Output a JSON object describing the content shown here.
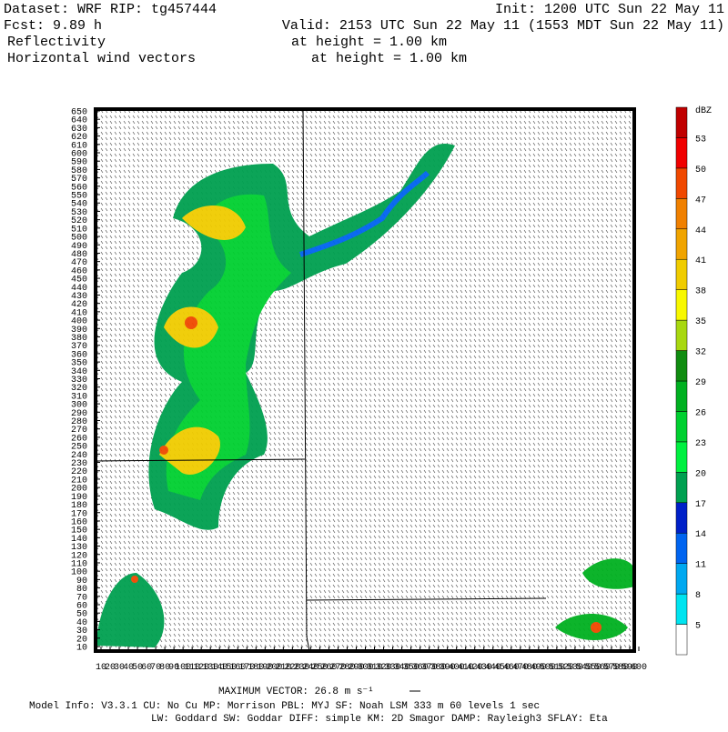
{
  "header": {
    "dataset": "Dataset: WRF  RIP: tg457444",
    "init": "Init: 1200 UTC Sun 22 May 11",
    "fcst": "Fcst:    9.89 h",
    "valid": "Valid: 2153 UTC Sun 22 May 11 (1553 MDT Sun 22 May 11)",
    "field1": "Reflectivity",
    "field1_level": "at height =  1.00 km",
    "field2": "Horizontal wind vectors",
    "field2_level": "at height =  1.00 km"
  },
  "map": {
    "xlim": [
      10,
      600
    ],
    "xticks": [
      10,
      20,
      30,
      40,
      50,
      60,
      70,
      80,
      90,
      100,
      110,
      120,
      130,
      140,
      150,
      160,
      170,
      180,
      190,
      200,
      210,
      220,
      230,
      240,
      250,
      260,
      270,
      280,
      290,
      300,
      310,
      320,
      330,
      340,
      350,
      360,
      370,
      380,
      390,
      400,
      410,
      420,
      430,
      440,
      450,
      460,
      470,
      480,
      490,
      500,
      510,
      520,
      530,
      540,
      550,
      560,
      570,
      580,
      590,
      600
    ],
    "ylim": [
      10,
      650
    ],
    "yticks": [
      10,
      20,
      30,
      40,
      50,
      60,
      70,
      80,
      90,
      100,
      110,
      120,
      130,
      140,
      150,
      160,
      170,
      180,
      190,
      200,
      210,
      220,
      230,
      240,
      250,
      260,
      270,
      280,
      290,
      300,
      310,
      320,
      330,
      340,
      350,
      360,
      370,
      380,
      390,
      400,
      410,
      420,
      430,
      440,
      450,
      460,
      470,
      480,
      490,
      500,
      510,
      520,
      530,
      540,
      550,
      560,
      570,
      580,
      590,
      600,
      610,
      620,
      630,
      640,
      650
    ]
  },
  "colorbar": {
    "unit": "dBZ",
    "levels": [
      5,
      8,
      11,
      14,
      17,
      20,
      23,
      26,
      29,
      32,
      35,
      38,
      41,
      44,
      47,
      50,
      53
    ],
    "colors": [
      "#ffffff",
      "#00e4f0",
      "#00a8f0",
      "#0064f0",
      "#0020c8",
      "#00a050",
      "#00f040",
      "#00d030",
      "#00b020",
      "#108c10",
      "#a8d810",
      "#f8f800",
      "#f0cc00",
      "#f0a400",
      "#f08000",
      "#f04800",
      "#f00000",
      "#c00000"
    ]
  },
  "footer": {
    "max_vector": "MAXIMUM VECTOR:  26.8 m s⁻¹",
    "model_info": "Model Info: V3.3.1    CU: No Cu    MP: Morrison     PBL: MYJ      SF: Noah LSM     333 m    60 levels     1 sec",
    "physics": "LW: Goddard  SW: Goddar DIFF: simple KM: 2D Smagor DAMP: Rayleigh3   SFLAY: Eta"
  }
}
